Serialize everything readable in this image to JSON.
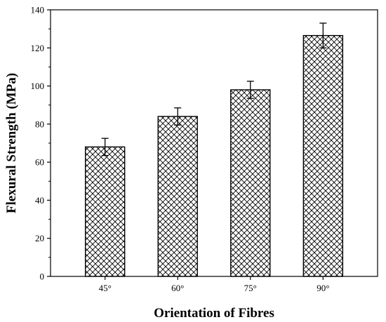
{
  "chart_data": {
    "type": "bar",
    "categories": [
      "45°",
      "60°",
      "75°",
      "90°"
    ],
    "values": [
      68,
      84,
      98,
      126.5
    ],
    "errors": [
      4.5,
      4.5,
      4.5,
      6.5
    ],
    "xlabel": "Orientation of Fibres",
    "ylabel": "Flexural Strength (MPa)",
    "ylim": [
      0,
      140
    ],
    "yticks": [
      0,
      20,
      40,
      60,
      80,
      100,
      120,
      140
    ],
    "grid": false,
    "legend": "none",
    "bar_fill": "crosshatch",
    "bar_color": "#000000",
    "background": "#ffffff"
  }
}
